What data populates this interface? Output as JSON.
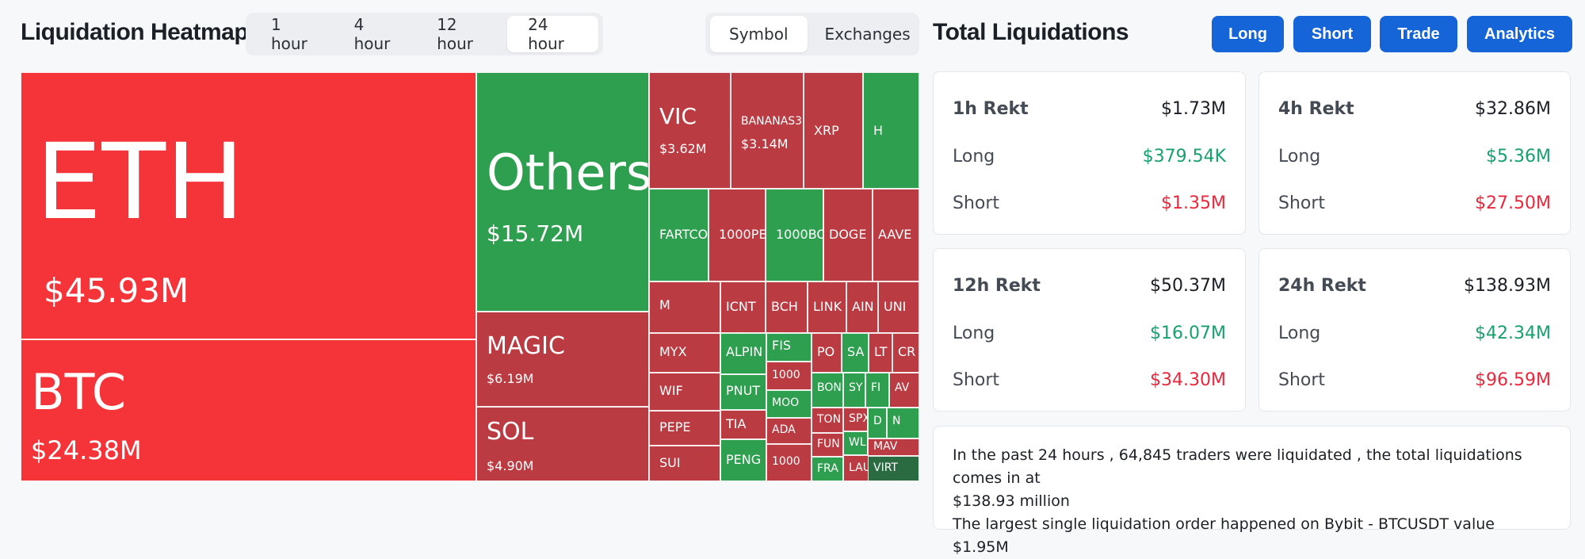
{
  "heatmap": {
    "title": "Liquidation Heatmap",
    "timeframes": [
      "1 hour",
      "4 hour",
      "12 hour",
      "24 hour"
    ],
    "active_timeframe": "24 hour",
    "views": [
      "Symbol",
      "Exchanges"
    ],
    "active_view": "Symbol",
    "colors": {
      "long": "#2e9e4f",
      "short": "#bb3b42",
      "short_large": "#f5343a",
      "dark_green": "#2a6b42"
    },
    "tiles": [
      {
        "symbol": "ETH",
        "value": "$45.93M",
        "side": "short_large"
      },
      {
        "symbol": "BTC",
        "value": "$24.38M",
        "side": "short_large"
      },
      {
        "symbol": "Others",
        "value": "$15.72M",
        "side": "long"
      },
      {
        "symbol": "MAGIC",
        "value": "$6.19M",
        "side": "short"
      },
      {
        "symbol": "SOL",
        "value": "$4.90M",
        "side": "short"
      },
      {
        "symbol": "VIC",
        "value": "$3.62M",
        "side": "short"
      },
      {
        "symbol": "BANANAS3",
        "value": "$3.14M",
        "side": "short"
      },
      {
        "symbol": "XRP",
        "value": "",
        "side": "short"
      },
      {
        "symbol": "H",
        "value": "",
        "side": "long"
      },
      {
        "symbol": "FARTCO",
        "value": "",
        "side": "long"
      },
      {
        "symbol": "1000PE",
        "value": "",
        "side": "short"
      },
      {
        "symbol": "1000BO",
        "value": "",
        "side": "long"
      },
      {
        "symbol": "DOGE",
        "value": "",
        "side": "short"
      },
      {
        "symbol": "AAVE",
        "value": "",
        "side": "short"
      },
      {
        "symbol": "M",
        "value": "",
        "side": "short"
      },
      {
        "symbol": "ICNT",
        "value": "",
        "side": "short"
      },
      {
        "symbol": "BCH",
        "value": "",
        "side": "short"
      },
      {
        "symbol": "LINK",
        "value": "",
        "side": "short"
      },
      {
        "symbol": "AIN",
        "value": "",
        "side": "short"
      },
      {
        "symbol": "UNI",
        "value": "",
        "side": "short"
      },
      {
        "symbol": "MYX",
        "value": "",
        "side": "short"
      },
      {
        "symbol": "WIF",
        "value": "",
        "side": "short"
      },
      {
        "symbol": "PEPE",
        "value": "",
        "side": "short"
      },
      {
        "symbol": "SUI",
        "value": "",
        "side": "short"
      },
      {
        "symbol": "ALPIN",
        "value": "",
        "side": "long"
      },
      {
        "symbol": "FIS",
        "value": "",
        "side": "long"
      },
      {
        "symbol": "PO",
        "value": "",
        "side": "short"
      },
      {
        "symbol": "SA",
        "value": "",
        "side": "long"
      },
      {
        "symbol": "LT",
        "value": "",
        "side": "short"
      },
      {
        "symbol": "CR",
        "value": "",
        "side": "short"
      },
      {
        "symbol": "PNUT",
        "value": "",
        "side": "long"
      },
      {
        "symbol": "1000",
        "value": "",
        "side": "short"
      },
      {
        "symbol": "BON",
        "value": "",
        "side": "long"
      },
      {
        "symbol": "SY",
        "value": "",
        "side": "long"
      },
      {
        "symbol": "FI",
        "value": "",
        "side": "long"
      },
      {
        "symbol": "AV",
        "value": "",
        "side": "short"
      },
      {
        "symbol": "MOO",
        "value": "",
        "side": "long"
      },
      {
        "symbol": "TON",
        "value": "",
        "side": "short"
      },
      {
        "symbol": "SPX",
        "value": "",
        "side": "short"
      },
      {
        "symbol": "D",
        "value": "",
        "side": "long"
      },
      {
        "symbol": "N",
        "value": "",
        "side": "long"
      },
      {
        "symbol": "TIA",
        "value": "",
        "side": "short"
      },
      {
        "symbol": "ADA",
        "value": "",
        "side": "short"
      },
      {
        "symbol": "FUN",
        "value": "",
        "side": "short"
      },
      {
        "symbol": "WL",
        "value": "",
        "side": "long"
      },
      {
        "symbol": "MAV",
        "value": "",
        "side": "short"
      },
      {
        "symbol": "PENG",
        "value": "",
        "side": "long"
      },
      {
        "symbol": "1000",
        "value": "",
        "side": "short"
      },
      {
        "symbol": "FRA",
        "value": "",
        "side": "long"
      },
      {
        "symbol": "LAU",
        "value": "",
        "side": "short"
      },
      {
        "symbol": "VIRT",
        "value": "",
        "side": "dark_green"
      }
    ]
  },
  "totals": {
    "title": "Total Liquidations",
    "actions": [
      "Long",
      "Short",
      "Trade",
      "Analytics"
    ],
    "cards": [
      {
        "label": "1h Rekt",
        "total": "$1.73M",
        "long_label": "Long",
        "long": "$379.54K",
        "short_label": "Short",
        "short": "$1.35M"
      },
      {
        "label": "4h Rekt",
        "total": "$32.86M",
        "long_label": "Long",
        "long": "$5.36M",
        "short_label": "Short",
        "short": "$27.50M"
      },
      {
        "label": "12h Rekt",
        "total": "$50.37M",
        "long_label": "Long",
        "long": "$16.07M",
        "short_label": "Short",
        "short": "$34.30M"
      },
      {
        "label": "24h Rekt",
        "total": "$138.93M",
        "long_label": "Long",
        "long": "$42.34M",
        "short_label": "Short",
        "short": "$96.59M"
      }
    ],
    "summary_line1": "In the past 24 hours , 64,845 traders were liquidated , the total liquidations comes in at",
    "summary_line2": "$138.93 million",
    "summary_line3": "The largest single liquidation order happened on Bybit - BTCUSDT value $1.95M"
  }
}
